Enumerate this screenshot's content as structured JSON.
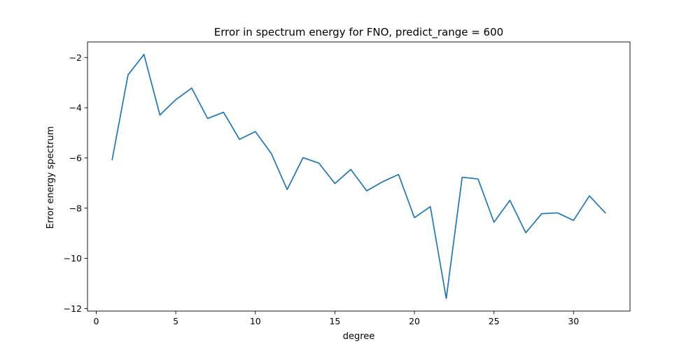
{
  "chart_data": {
    "type": "line",
    "title": "Error in spectrum energy for FNO, predict_range = 600",
    "xlabel": "degree",
    "ylabel": "Error energy spectrum",
    "xlim": [
      -0.55,
      33.55
    ],
    "ylim": [
      -12.1,
      -1.38
    ],
    "xticks": [
      0,
      5,
      10,
      15,
      20,
      25,
      30
    ],
    "xtick_labels": [
      "0",
      "5",
      "10",
      "15",
      "20",
      "25",
      "30"
    ],
    "yticks": [
      -12,
      -10,
      -8,
      -6,
      -4,
      -2
    ],
    "ytick_labels": [
      "−12",
      "−10",
      "−8",
      "−6",
      "−4",
      "−2"
    ],
    "grid": false,
    "series": [
      {
        "color": "#1f77b4",
        "x": [
          1,
          2,
          3,
          4,
          5,
          6,
          7,
          8,
          9,
          10,
          11,
          12,
          13,
          14,
          15,
          16,
          17,
          18,
          19,
          20,
          21,
          22,
          23,
          24,
          25,
          26,
          27,
          28,
          29,
          30,
          31,
          32
        ],
        "y": [
          -6.07,
          -2.69,
          -1.88,
          -4.29,
          -3.68,
          -3.22,
          -4.43,
          -4.18,
          -5.26,
          -4.95,
          -5.82,
          -7.26,
          -5.99,
          -6.21,
          -7.02,
          -6.46,
          -7.31,
          -6.95,
          -6.66,
          -8.38,
          -7.94,
          -11.6,
          -6.77,
          -6.84,
          -8.56,
          -7.69,
          -8.98,
          -8.22,
          -8.19,
          -8.49,
          -7.51,
          -8.19
        ]
      }
    ]
  }
}
